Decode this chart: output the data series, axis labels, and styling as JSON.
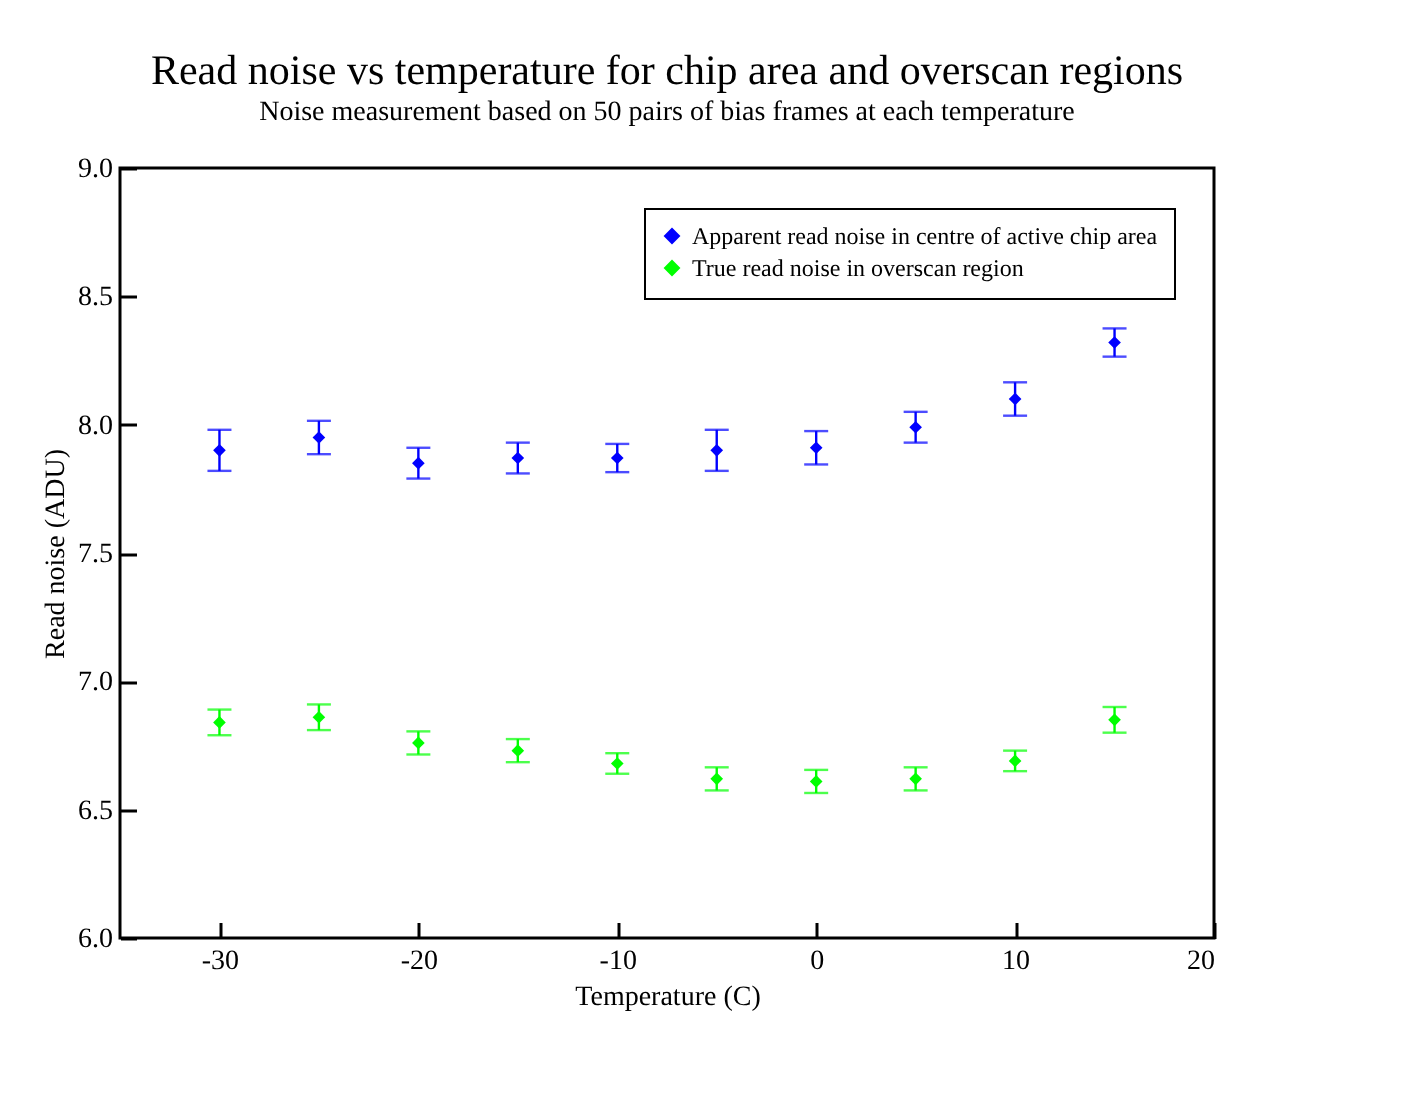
{
  "chart_data": {
    "type": "scatter",
    "title": "Read noise vs temperature for chip area and overscan regions",
    "subtitle": "Noise measurement based on 50 pairs of bias frames at each temperature",
    "xlabel": "Temperature (C)",
    "ylabel": "Read noise (ADU)",
    "x": [
      -30,
      -25,
      -20,
      -15,
      -10,
      -5,
      0,
      5,
      10,
      15
    ],
    "series": [
      {
        "name": "Apparent read noise in centre of active chip area",
        "color": "#0000ff",
        "values": [
          7.9,
          7.95,
          7.85,
          7.87,
          7.87,
          7.9,
          7.91,
          7.99,
          8.1,
          8.32
        ],
        "errors": [
          0.08,
          0.065,
          0.06,
          0.06,
          0.055,
          0.08,
          0.065,
          0.06,
          0.065,
          0.055
        ]
      },
      {
        "name": "True read noise in overscan region",
        "color": "#00ff00",
        "values": [
          6.84,
          6.86,
          6.76,
          6.73,
          6.68,
          6.62,
          6.61,
          6.62,
          6.69,
          6.85
        ],
        "errors": [
          0.05,
          0.05,
          0.045,
          0.045,
          0.04,
          0.045,
          0.045,
          0.045,
          0.04,
          0.05
        ]
      }
    ],
    "xlim": [
      -35,
      20
    ],
    "xticks": [
      -30,
      -20,
      -10,
      0,
      10,
      20
    ],
    "ylim": [
      6,
      9
    ],
    "yticks": [
      {
        "value": 6,
        "label": "6.0"
      },
      {
        "value": 6.5,
        "label": "6.5"
      },
      {
        "value": 7,
        "label": "7.0"
      },
      {
        "value": 7.5,
        "label": "7.5"
      },
      {
        "value": 8,
        "label": "8.0"
      },
      {
        "value": 8.5,
        "label": "8.5"
      },
      {
        "value": 9,
        "label": "9.0"
      }
    ],
    "grid": false,
    "legend": "top right",
    "marker": "diamond"
  }
}
